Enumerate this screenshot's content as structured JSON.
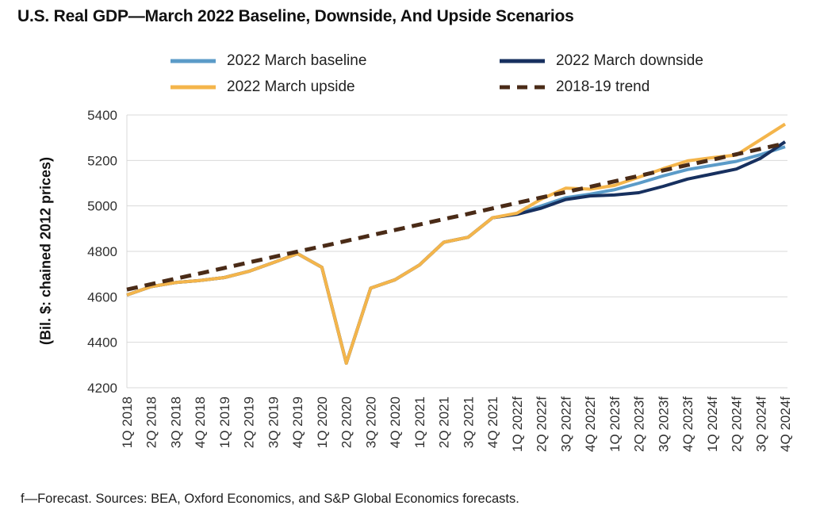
{
  "title": "U.S. Real GDP—March 2022 Baseline, Downside, And Upside Scenarios",
  "footer": "f—Forecast. Sources: BEA, Oxford Economics, and S&P Global Economics forecasts.",
  "colors": {
    "baseline": "#5B9BC8",
    "downside": "#17305F",
    "upside": "#F4B54B",
    "trend": "#4A2B17",
    "gridline": "#D9D9D9",
    "text": "#303030"
  },
  "chart_data": {
    "type": "line",
    "title": "U.S. Real GDP—March 2022 Baseline, Downside, And Upside Scenarios",
    "xlabel": "",
    "ylabel": "(Bil. $: chained 2012 prices)",
    "ylim": [
      4200,
      5400
    ],
    "yticks": [
      5400,
      5200,
      5000,
      4800,
      4600,
      4400,
      4200
    ],
    "grid": true,
    "legend_position": "top",
    "categories": [
      "1Q 2018",
      "2Q 2018",
      "3Q 2018",
      "4Q 2018",
      "1Q 2019",
      "2Q 2019",
      "3Q 2019",
      "4Q 2019",
      "1Q 2020",
      "2Q 2020",
      "3Q 2020",
      "4Q 2020",
      "1Q 2021",
      "2Q 2021",
      "3Q 2021",
      "4Q 2021",
      "1Q 2022f",
      "2Q 2022f",
      "3Q 2022f",
      "4Q 2022f",
      "1Q 2023f",
      "2Q 2023f",
      "3Q 2023f",
      "4Q 2023f",
      "1Q 2024f",
      "2Q 2024f",
      "3Q 2024f",
      "4Q 2024f"
    ],
    "series": [
      {
        "name": "2022 March baseline",
        "color": "#5B9BC8",
        "style": "solid",
        "values": [
          4608,
          4645,
          4663,
          4672,
          4685,
          4712,
          4750,
          4790,
          4730,
          4308,
          4638,
          4675,
          4740,
          4840,
          4862,
          4948,
          4965,
          5000,
          5036,
          5052,
          5071,
          5100,
          5132,
          5160,
          5178,
          5196,
          5226,
          5260
        ]
      },
      {
        "name": "2022 March downside",
        "color": "#17305F",
        "style": "solid",
        "values": [
          4608,
          4645,
          4663,
          4672,
          4685,
          4712,
          4750,
          4790,
          4730,
          4308,
          4638,
          4675,
          4740,
          4840,
          4862,
          4948,
          4963,
          4990,
          5028,
          5044,
          5048,
          5058,
          5086,
          5118,
          5140,
          5162,
          5210,
          5282
        ]
      },
      {
        "name": "2022 March upside",
        "color": "#F4B54B",
        "style": "solid",
        "values": [
          4608,
          4645,
          4663,
          4672,
          4685,
          4712,
          4750,
          4790,
          4730,
          4308,
          4638,
          4675,
          4740,
          4840,
          4862,
          4948,
          4968,
          5030,
          5078,
          5074,
          5090,
          5126,
          5164,
          5198,
          5212,
          5224,
          5292,
          5360
        ]
      },
      {
        "name": "2018-19 trend",
        "color": "#4A2B17",
        "style": "dashed",
        "values": [
          4632,
          4656,
          4680,
          4703,
          4727,
          4751,
          4775,
          4799,
          4822,
          4846,
          4870,
          4894,
          4918,
          4942,
          4965,
          4989,
          5013,
          5037,
          5061,
          5084,
          5108,
          5132,
          5156,
          5180,
          5203,
          5227,
          5251,
          5275
        ]
      }
    ]
  }
}
